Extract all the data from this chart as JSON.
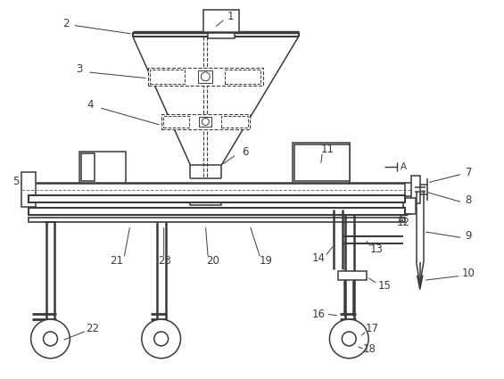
{
  "bg_color": "#ffffff",
  "lc": "#3a3a3a",
  "lw": 1.1,
  "fs": 8.5
}
